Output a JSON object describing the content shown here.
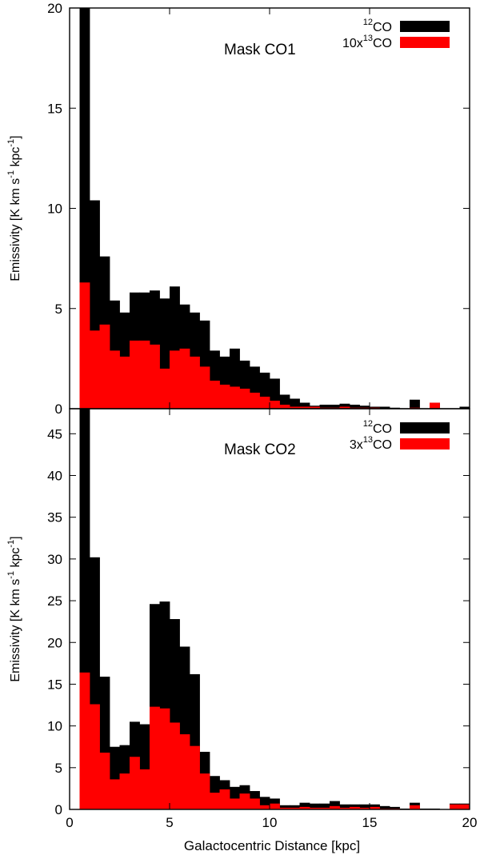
{
  "chart_data": [
    {
      "type": "bar",
      "style": "step-histogram",
      "annotation": "Mask CO1",
      "ylabel": "Emissivity [K km s-1 kpc-1]",
      "xlabel": "",
      "xlim": [
        0,
        20
      ],
      "ylim": [
        0,
        20
      ],
      "xticks": [
        "0",
        "5",
        "10",
        "15",
        "20"
      ],
      "yticks": [
        "0",
        "5",
        "10",
        "15",
        "20"
      ],
      "bin_width": 0.5,
      "bin_starts": [
        0.5,
        1,
        1.5,
        2,
        2.5,
        3,
        3.5,
        4,
        4.5,
        5,
        5.5,
        6,
        6.5,
        7,
        7.5,
        8,
        8.5,
        9,
        9.5,
        10,
        10.5,
        11,
        11.5,
        12,
        12.5,
        13,
        13.5,
        14,
        14.5,
        15,
        15.5,
        16,
        16.5,
        17,
        17.5,
        18,
        18.5,
        19,
        19.5
      ],
      "legend_placement": "top-right",
      "series": [
        {
          "name": "12CO",
          "legend": {
            "sup": "12",
            "main": "CO",
            "pre": ""
          },
          "color": "#000000",
          "values": [
            20,
            10.4,
            7.6,
            5.4,
            4.8,
            5.8,
            5.8,
            5.9,
            5.5,
            6.1,
            5.2,
            4.8,
            4.4,
            2.9,
            2.6,
            3.0,
            2.4,
            2.1,
            1.8,
            1.5,
            0.7,
            0.5,
            0.3,
            0.15,
            0.2,
            0.2,
            0.25,
            0.2,
            0.15,
            0.1,
            0.1,
            0.05,
            0,
            0.45,
            0,
            0.3,
            0,
            0,
            0.1
          ]
        },
        {
          "name": "10x13CO",
          "legend": {
            "sup": "13",
            "main": "CO",
            "pre": "10x"
          },
          "color": "#ff0000",
          "values": [
            6.3,
            3.9,
            4.2,
            2.9,
            2.6,
            3.4,
            3.4,
            3.2,
            2.0,
            2.9,
            3.0,
            2.6,
            2.1,
            1.4,
            1.2,
            1.1,
            1.0,
            0.8,
            0.6,
            0.4,
            0.2,
            0.1,
            0.1,
            0.1,
            0.05,
            0.05,
            0.1,
            0.05,
            0.05,
            0.05,
            0,
            0,
            0,
            0.05,
            0,
            0.3,
            0,
            0,
            0
          ]
        }
      ]
    },
    {
      "type": "bar",
      "style": "step-histogram",
      "annotation": "Mask CO2",
      "ylabel": "Emissivity [K km s-1 kpc-1]",
      "xlabel": "Galactocentric Distance [kpc]",
      "xlim": [
        0,
        20
      ],
      "ylim": [
        0,
        48
      ],
      "xticks": [
        "0",
        "5",
        "10",
        "15",
        "20"
      ],
      "yticks": [
        "0",
        "5",
        "10",
        "15",
        "20",
        "25",
        "30",
        "35",
        "40",
        "45"
      ],
      "bin_width": 0.5,
      "bin_starts": [
        0.5,
        1,
        1.5,
        2,
        2.5,
        3,
        3.5,
        4,
        4.5,
        5,
        5.5,
        6,
        6.5,
        7,
        7.5,
        8,
        8.5,
        9,
        9.5,
        10,
        10.5,
        11,
        11.5,
        12,
        12.5,
        13,
        13.5,
        14,
        14.5,
        15,
        15.5,
        16,
        16.5,
        17,
        17.5,
        18,
        18.5,
        19,
        19.5
      ],
      "legend_placement": "top-right",
      "series": [
        {
          "name": "12CO",
          "legend": {
            "sup": "12",
            "main": "CO",
            "pre": ""
          },
          "color": "#000000",
          "values": [
            48,
            30.2,
            15.9,
            7.5,
            7.7,
            10.5,
            10.2,
            24.6,
            24.9,
            22.8,
            19.5,
            16.2,
            6.9,
            4.0,
            3.5,
            2.7,
            2.9,
            2.2,
            1.5,
            1.3,
            0.5,
            0.5,
            0.8,
            0.7,
            0.7,
            1.0,
            0.6,
            0.6,
            0.6,
            0.6,
            0.4,
            0.3,
            0.1,
            0.8,
            0.1,
            0.1,
            0,
            0.7,
            0.7
          ]
        },
        {
          "name": "3x13CO",
          "legend": {
            "sup": "13",
            "main": "CO",
            "pre": "3x"
          },
          "color": "#ff0000",
          "values": [
            16.4,
            12.6,
            6.8,
            3.6,
            4.3,
            6.3,
            4.8,
            12.3,
            12.1,
            10.4,
            9.0,
            7.6,
            4.3,
            2.0,
            2.4,
            1.3,
            1.9,
            1.3,
            0.5,
            0.7,
            0.2,
            0.2,
            0.3,
            0.2,
            0.2,
            0.4,
            0.2,
            0.3,
            0.2,
            0.3,
            0.1,
            0.1,
            0,
            0.5,
            0,
            0,
            0,
            0.6,
            0.6
          ]
        }
      ]
    }
  ]
}
